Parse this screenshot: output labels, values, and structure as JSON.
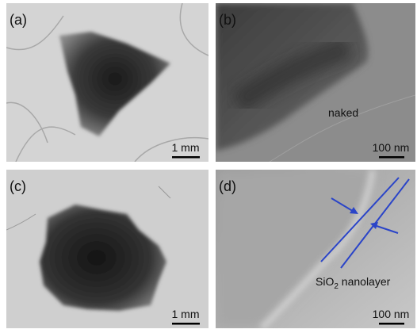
{
  "panels": [
    {
      "label": "(a)",
      "scale_bar": "1 mm"
    },
    {
      "label": "(b)",
      "scale_bar": "100 nm",
      "annotation": "naked"
    },
    {
      "label": "(c)",
      "scale_bar": "1 mm"
    },
    {
      "label": "(d)",
      "scale_bar": "100 nm",
      "annotation": {
        "text": "SiO",
        "subscript": "2",
        "text_after": " nanolayer"
      }
    }
  ]
}
